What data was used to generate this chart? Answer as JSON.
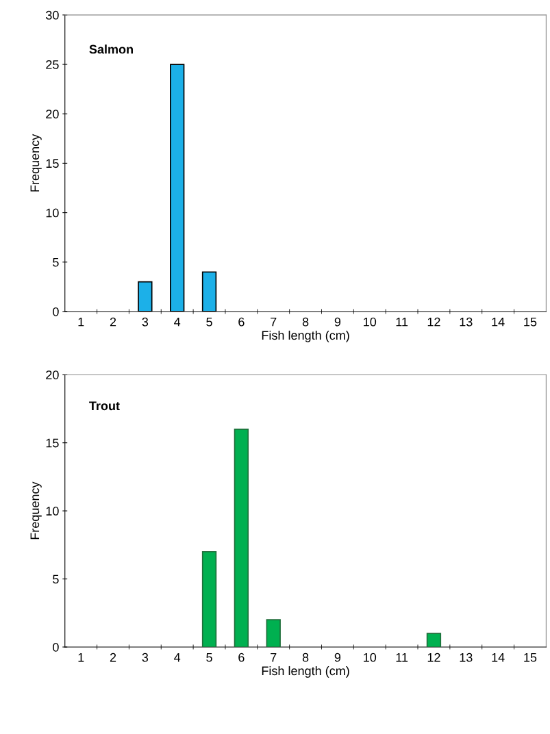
{
  "chart_data": [
    {
      "type": "bar",
      "title": "Salmon",
      "xlabel": "Fish length (cm)",
      "ylabel": "Frequency",
      "categories": [
        "1",
        "2",
        "3",
        "4",
        "5",
        "6",
        "7",
        "8",
        "9",
        "10",
        "11",
        "12",
        "13",
        "14",
        "15"
      ],
      "values": [
        0,
        0,
        3,
        25,
        4,
        0,
        0,
        0,
        0,
        0,
        0,
        0,
        0,
        0,
        0
      ],
      "color": "#1cb0e8",
      "ylim": [
        0,
        30
      ],
      "yticks": [
        0,
        5,
        10,
        15,
        20,
        25,
        30
      ],
      "grid": false,
      "legend": false
    },
    {
      "type": "bar",
      "title": "Trout",
      "xlabel": "Fish length (cm)",
      "ylabel": "Frequency",
      "categories": [
        "1",
        "2",
        "3",
        "4",
        "5",
        "6",
        "7",
        "8",
        "9",
        "10",
        "11",
        "12",
        "13",
        "14",
        "15"
      ],
      "values": [
        0,
        0,
        0,
        0,
        7,
        16,
        2,
        0,
        0,
        0,
        0,
        1,
        0,
        0,
        0
      ],
      "color": "#00b050",
      "ylim": [
        0,
        20
      ],
      "yticks": [
        0,
        5,
        10,
        15,
        20
      ],
      "grid": false,
      "legend": false
    }
  ]
}
